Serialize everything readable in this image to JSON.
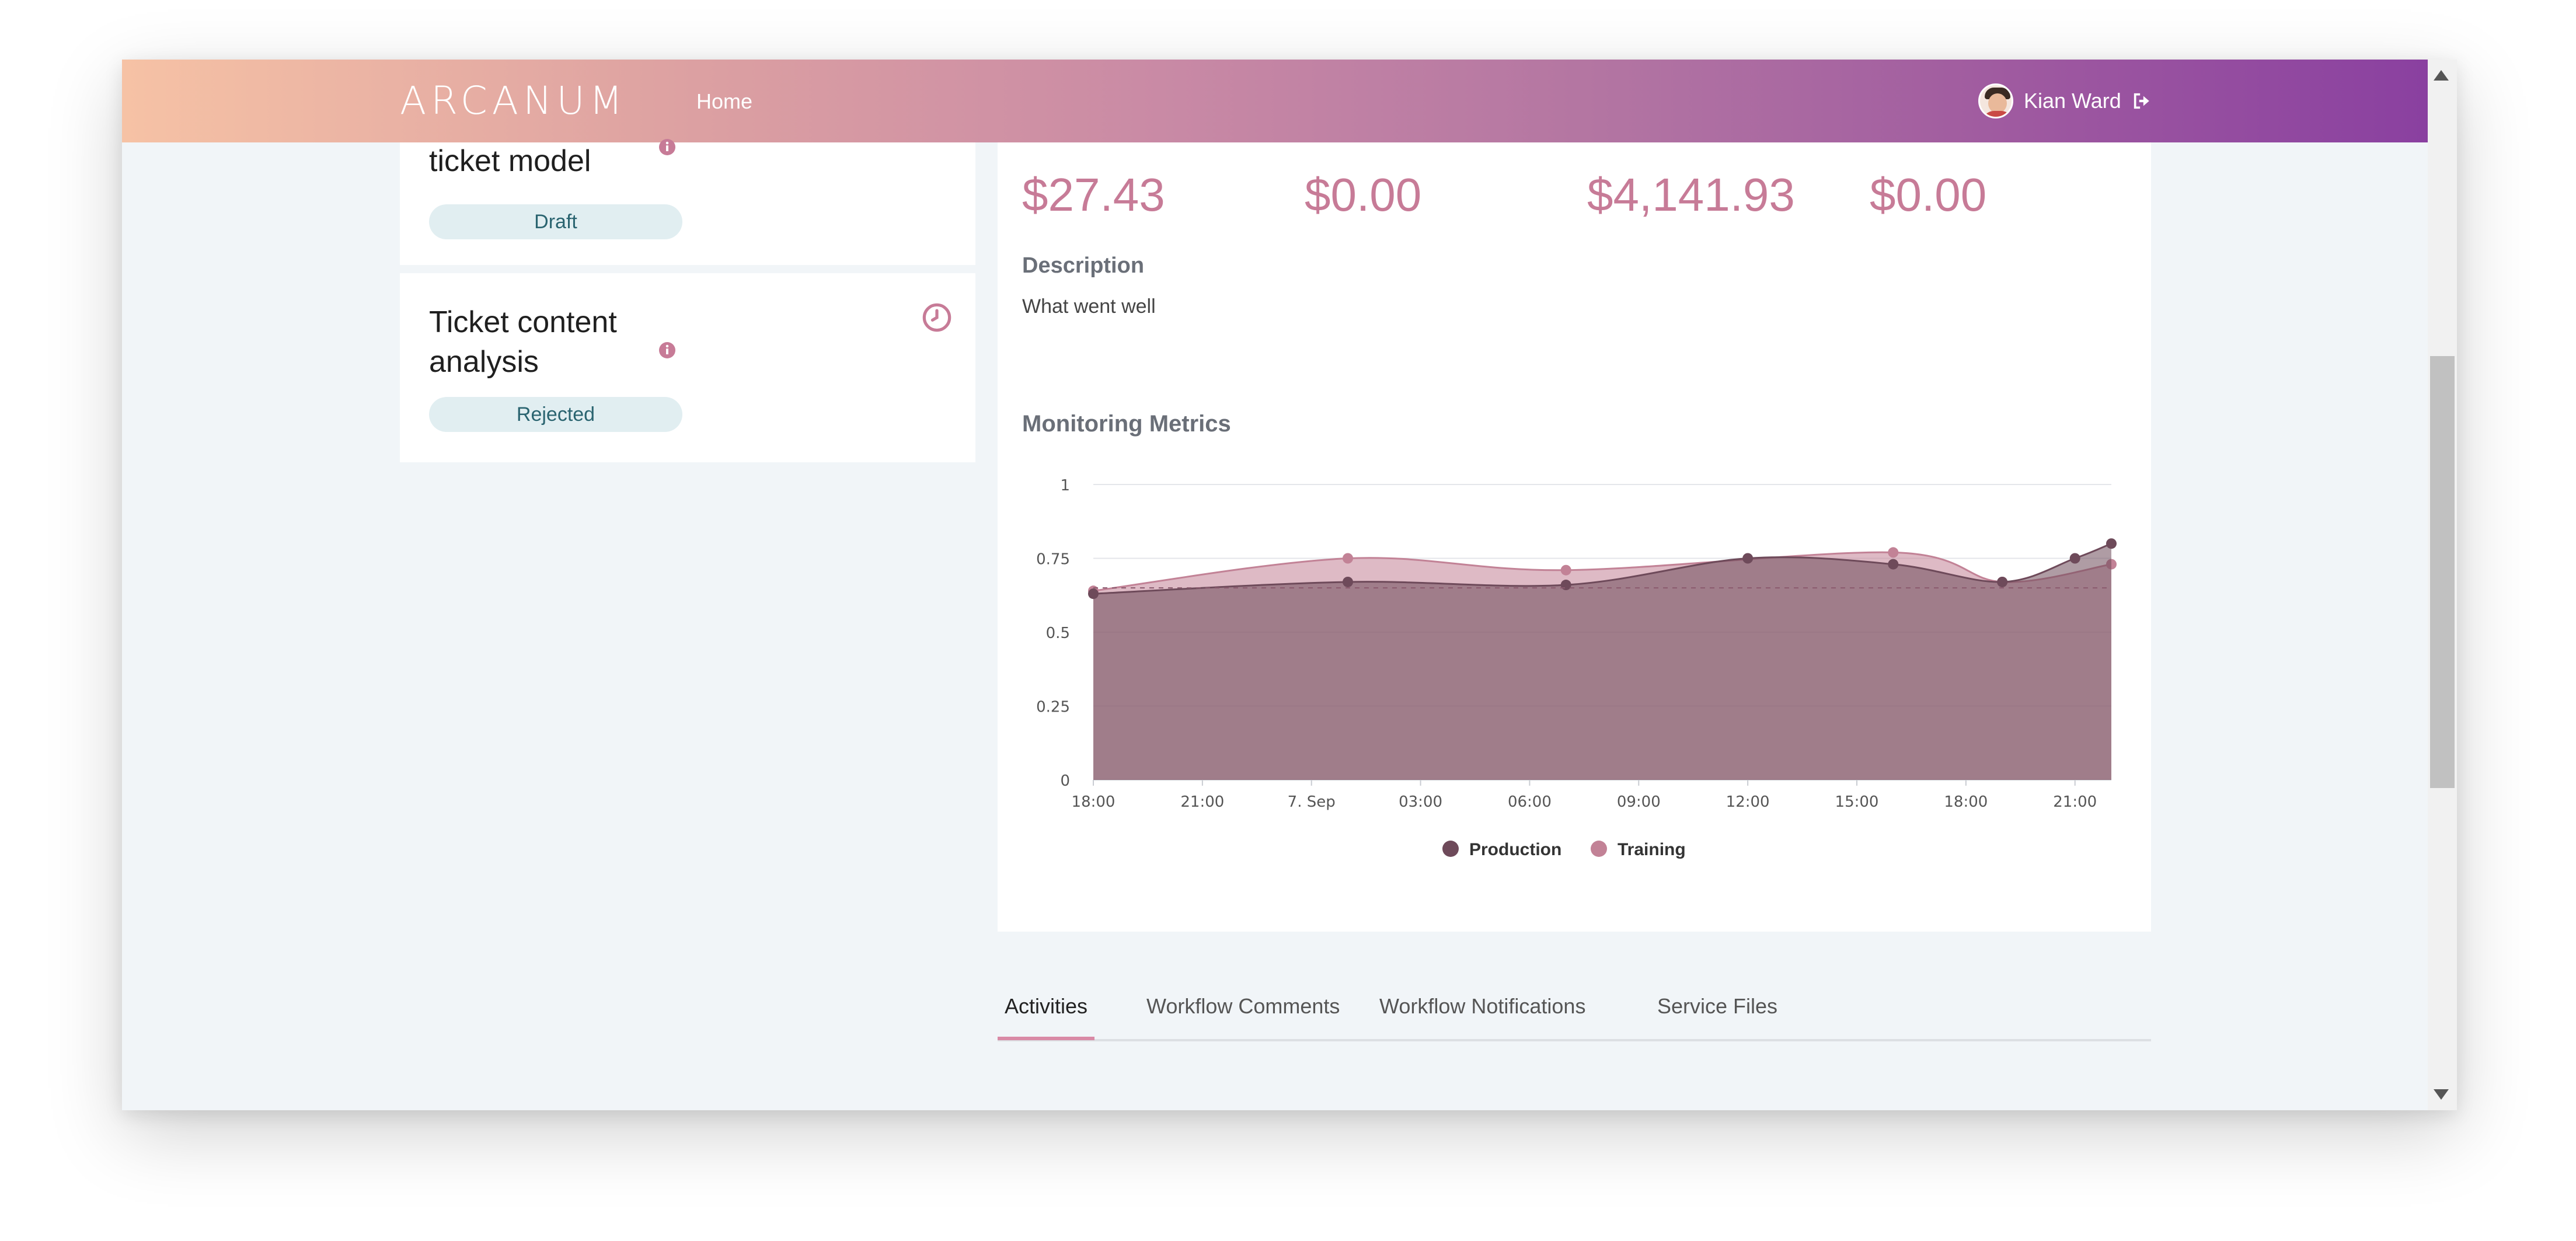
{
  "header": {
    "logo": "ARCANUM",
    "nav_home": "Home",
    "user_name": "Kian Ward"
  },
  "left_cards": [
    {
      "title": "ticket model",
      "status": "Draft"
    },
    {
      "title_line1": "Ticket content",
      "title_line2": "analysis",
      "status": "Rejected"
    }
  ],
  "values": [
    "$27.43",
    "$0.00",
    "$4,141.93",
    "$0.00"
  ],
  "description": {
    "label": "Description",
    "text": "What went well"
  },
  "chart": {
    "title": "Monitoring Metrics",
    "legend": [
      "Production",
      "Training"
    ]
  },
  "tabs": [
    "Activities",
    "Workflow Comments",
    "Workflow Notifications",
    "Service Files"
  ],
  "colors": {
    "production": "#6e4a5a",
    "training": "#c28296",
    "accent": "#c77b97"
  },
  "chart_data": {
    "type": "area",
    "x": [
      "18:00",
      "21:00",
      "7. Sep",
      "03:00",
      "06:00",
      "09:00",
      "12:00",
      "15:00",
      "18:00",
      "21:00"
    ],
    "yticks": [
      "0",
      "0.25",
      "0.5",
      "0.75",
      "1"
    ],
    "ylim": [
      0,
      1
    ],
    "series": [
      {
        "name": "Production",
        "points": [
          [
            0,
            0.63
          ],
          [
            7,
            0.67
          ],
          [
            13,
            0.66
          ],
          [
            18,
            0.75
          ],
          [
            22,
            0.73
          ],
          [
            25,
            0.67
          ],
          [
            27,
            0.75
          ],
          [
            28,
            0.8
          ]
        ]
      },
      {
        "name": "Training",
        "points": [
          [
            0,
            0.64
          ],
          [
            7,
            0.75
          ],
          [
            13,
            0.71
          ],
          [
            22,
            0.77
          ],
          [
            25,
            0.67
          ],
          [
            28,
            0.73
          ]
        ]
      }
    ],
    "x_span": 28,
    "reference_line": 0.65,
    "legend_position": "bottom"
  }
}
